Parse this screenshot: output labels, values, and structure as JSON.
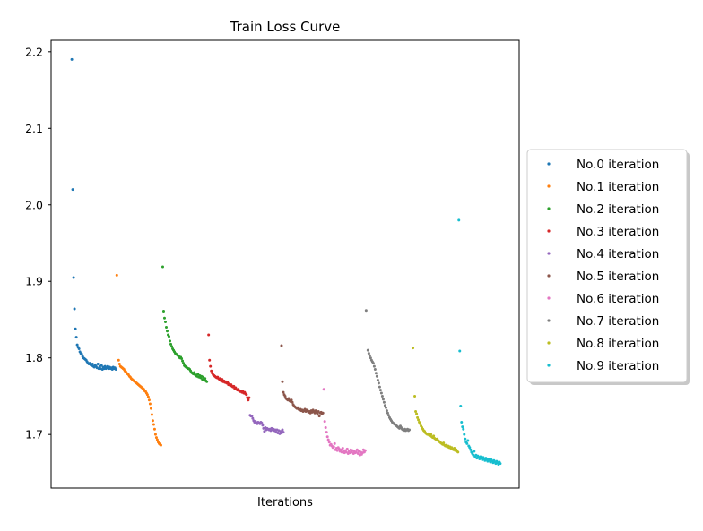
{
  "chart_data": {
    "type": "scatter",
    "title": "Train Loss Curve",
    "xlabel": "Iterations",
    "ylabel": "",
    "xlim": [
      0,
      520
    ],
    "ylim": [
      1.63,
      2.215
    ],
    "yticks": [
      1.7,
      1.8,
      1.9,
      2.0,
      2.1,
      2.2
    ],
    "ytick_labels": [
      "1.7",
      "1.8",
      "1.9",
      "2.0",
      "2.1",
      "2.2"
    ],
    "xticks_visible": false,
    "grid": false,
    "legend_position": "center-right, outside plot",
    "series": [
      {
        "name": "No.0 iteration",
        "color": "#1f77b4",
        "x": [
          23,
          24,
          25,
          26,
          27,
          28,
          29,
          30,
          31,
          32,
          33,
          34,
          35,
          36,
          37,
          38,
          39,
          40,
          41,
          42,
          43,
          44,
          45,
          46,
          47,
          48,
          49,
          50,
          51,
          52,
          53,
          54,
          55,
          56,
          57,
          58,
          59,
          60,
          61,
          62,
          63,
          64,
          65,
          66,
          67,
          68,
          69,
          70,
          71,
          72
        ],
        "y": [
          2.19,
          2.02,
          1.905,
          1.864,
          1.838,
          1.827,
          1.817,
          1.814,
          1.812,
          1.808,
          1.806,
          1.805,
          1.802,
          1.8,
          1.799,
          1.798,
          1.797,
          1.795,
          1.793,
          1.792,
          1.793,
          1.791,
          1.79,
          1.792,
          1.789,
          1.788,
          1.791,
          1.789,
          1.787,
          1.792,
          1.786,
          1.789,
          1.786,
          1.79,
          1.785,
          1.788,
          1.786,
          1.789,
          1.786,
          1.787,
          1.789,
          1.786,
          1.788,
          1.786,
          1.787,
          1.785,
          1.788,
          1.786,
          1.787,
          1.785
        ]
      },
      {
        "name": "No.1 iteration",
        "color": "#ff7f0e",
        "x": [
          73,
          75,
          76,
          77,
          78,
          79,
          80,
          81,
          82,
          83,
          84,
          85,
          86,
          87,
          88,
          89,
          90,
          91,
          92,
          93,
          94,
          95,
          96,
          97,
          98,
          99,
          100,
          101,
          102,
          103,
          104,
          105,
          106,
          107,
          108,
          109,
          110,
          111,
          112,
          113,
          114,
          115,
          116,
          117,
          118,
          119,
          120,
          121,
          122
        ],
        "y": [
          1.908,
          1.797,
          1.792,
          1.789,
          1.788,
          1.787,
          1.786,
          1.785,
          1.783,
          1.782,
          1.78,
          1.779,
          1.778,
          1.776,
          1.775,
          1.773,
          1.772,
          1.771,
          1.77,
          1.769,
          1.768,
          1.767,
          1.766,
          1.765,
          1.764,
          1.763,
          1.762,
          1.761,
          1.76,
          1.759,
          1.757,
          1.756,
          1.754,
          1.752,
          1.749,
          1.745,
          1.74,
          1.734,
          1.726,
          1.718,
          1.713,
          1.707,
          1.7,
          1.696,
          1.693,
          1.69,
          1.688,
          1.687,
          1.686
        ]
      },
      {
        "name": "No.2 iteration",
        "color": "#2ca02c",
        "x": [
          124,
          125,
          126,
          127,
          128,
          129,
          130,
          131,
          132,
          133,
          134,
          135,
          136,
          137,
          138,
          139,
          140,
          141,
          142,
          143,
          144,
          145,
          146,
          147,
          148,
          149,
          150,
          151,
          152,
          153,
          154,
          155,
          156,
          157,
          158,
          159,
          160,
          161,
          162,
          163,
          164,
          165,
          166,
          167,
          168,
          169,
          170,
          171,
          172,
          173
        ],
        "y": [
          1.919,
          1.861,
          1.852,
          1.847,
          1.84,
          1.835,
          1.83,
          1.828,
          1.822,
          1.818,
          1.815,
          1.812,
          1.81,
          1.808,
          1.806,
          1.805,
          1.804,
          1.803,
          1.802,
          1.8,
          1.801,
          1.799,
          1.796,
          1.793,
          1.79,
          1.789,
          1.788,
          1.787,
          1.786,
          1.786,
          1.785,
          1.783,
          1.781,
          1.78,
          1.779,
          1.781,
          1.778,
          1.777,
          1.776,
          1.779,
          1.775,
          1.777,
          1.774,
          1.776,
          1.772,
          1.775,
          1.771,
          1.773,
          1.77,
          1.769
        ]
      },
      {
        "name": "No.3 iteration",
        "color": "#d62728",
        "x": [
          175,
          176,
          177,
          178,
          179,
          180,
          181,
          182,
          183,
          184,
          185,
          186,
          187,
          188,
          189,
          190,
          191,
          192,
          193,
          194,
          195,
          196,
          197,
          198,
          199,
          200,
          201,
          202,
          203,
          204,
          205,
          206,
          207,
          208,
          209,
          210,
          211,
          212,
          213,
          214,
          215,
          216,
          217,
          218,
          219,
          220
        ],
        "y": [
          1.83,
          1.797,
          1.789,
          1.783,
          1.78,
          1.778,
          1.777,
          1.776,
          1.775,
          1.774,
          1.775,
          1.773,
          1.772,
          1.773,
          1.77,
          1.772,
          1.769,
          1.77,
          1.768,
          1.769,
          1.767,
          1.768,
          1.765,
          1.766,
          1.764,
          1.765,
          1.763,
          1.762,
          1.763,
          1.76,
          1.761,
          1.759,
          1.758,
          1.759,
          1.757,
          1.756,
          1.757,
          1.755,
          1.756,
          1.754,
          1.755,
          1.753,
          1.752,
          1.748,
          1.745,
          1.748
        ]
      },
      {
        "name": "No.4 iteration",
        "color": "#9467bd",
        "x": [
          221,
          222,
          223,
          224,
          225,
          226,
          227,
          228,
          229,
          230,
          231,
          232,
          233,
          234,
          235,
          236,
          237,
          238,
          239,
          240,
          241,
          242,
          243,
          244,
          245,
          246,
          247,
          248,
          249,
          250,
          251,
          252,
          253,
          254,
          255,
          256,
          257,
          258
        ],
        "y": [
          1.725,
          1.724,
          1.724,
          1.721,
          1.718,
          1.716,
          1.717,
          1.715,
          1.714,
          1.716,
          1.715,
          1.714,
          1.716,
          1.715,
          1.712,
          1.708,
          1.704,
          1.709,
          1.706,
          1.708,
          1.707,
          1.706,
          1.707,
          1.705,
          1.708,
          1.706,
          1.707,
          1.705,
          1.706,
          1.703,
          1.706,
          1.702,
          1.705,
          1.701,
          1.704,
          1.702,
          1.706,
          1.703
        ]
      },
      {
        "name": "No.5 iteration",
        "color": "#8c564b",
        "x": [
          256,
          257,
          258,
          259,
          260,
          261,
          262,
          263,
          264,
          265,
          266,
          267,
          268,
          269,
          270,
          271,
          272,
          273,
          274,
          275,
          276,
          277,
          278,
          279,
          280,
          281,
          282,
          283,
          284,
          285,
          286,
          287,
          288,
          289,
          290,
          291,
          292,
          293,
          294,
          295,
          296,
          297,
          298,
          299,
          300,
          301,
          302
        ],
        "y": [
          1.816,
          1.769,
          1.755,
          1.752,
          1.75,
          1.747,
          1.746,
          1.745,
          1.747,
          1.744,
          1.743,
          1.745,
          1.742,
          1.739,
          1.737,
          1.736,
          1.735,
          1.734,
          1.735,
          1.733,
          1.732,
          1.733,
          1.731,
          1.732,
          1.73,
          1.731,
          1.733,
          1.73,
          1.732,
          1.731,
          1.729,
          1.73,
          1.728,
          1.731,
          1.729,
          1.732,
          1.73,
          1.728,
          1.731,
          1.729,
          1.727,
          1.73,
          1.724,
          1.728,
          1.729,
          1.727,
          1.728
        ]
      },
      {
        "name": "No.6 iteration",
        "color": "#e377c2",
        "x": [
          303,
          304,
          305,
          306,
          307,
          308,
          309,
          310,
          311,
          312,
          313,
          314,
          315,
          316,
          317,
          318,
          319,
          320,
          321,
          322,
          323,
          324,
          325,
          326,
          327,
          328,
          329,
          330,
          331,
          332,
          333,
          334,
          335,
          336,
          337,
          338,
          339,
          340,
          341,
          342,
          343,
          344,
          345,
          346,
          347,
          348,
          349
        ],
        "y": [
          1.759,
          1.717,
          1.709,
          1.703,
          1.697,
          1.693,
          1.69,
          1.686,
          1.687,
          1.685,
          1.683,
          1.684,
          1.688,
          1.68,
          1.682,
          1.679,
          1.683,
          1.681,
          1.678,
          1.68,
          1.677,
          1.682,
          1.678,
          1.676,
          1.679,
          1.677,
          1.681,
          1.675,
          1.678,
          1.676,
          1.68,
          1.677,
          1.679,
          1.675,
          1.678,
          1.676,
          1.677,
          1.68,
          1.675,
          1.678,
          1.673,
          1.677,
          1.674,
          1.676,
          1.68,
          1.677,
          1.679
        ]
      },
      {
        "name": "No.7 iteration",
        "color": "#7f7f7f",
        "x": [
          350,
          352,
          353,
          354,
          355,
          356,
          357,
          358,
          359,
          360,
          361,
          362,
          363,
          364,
          365,
          366,
          367,
          368,
          369,
          370,
          371,
          372,
          373,
          374,
          375,
          376,
          377,
          378,
          379,
          380,
          381,
          382,
          383,
          384,
          385,
          386,
          387,
          388,
          389,
          390,
          391,
          392,
          393,
          394,
          395,
          396,
          397,
          398
        ],
        "y": [
          1.862,
          1.81,
          1.806,
          1.803,
          1.8,
          1.797,
          1.795,
          1.793,
          1.789,
          1.785,
          1.78,
          1.776,
          1.771,
          1.767,
          1.762,
          1.758,
          1.754,
          1.75,
          1.746,
          1.742,
          1.738,
          1.735,
          1.731,
          1.728,
          1.725,
          1.722,
          1.72,
          1.718,
          1.716,
          1.715,
          1.714,
          1.713,
          1.712,
          1.711,
          1.71,
          1.709,
          1.708,
          1.711,
          1.709,
          1.707,
          1.706,
          1.705,
          1.707,
          1.705,
          1.706,
          1.707,
          1.705,
          1.706
        ]
      },
      {
        "name": "No.8 iteration",
        "color": "#bcbd22",
        "x": [
          402,
          404,
          405,
          406,
          407,
          408,
          409,
          410,
          411,
          412,
          413,
          414,
          415,
          416,
          417,
          418,
          419,
          420,
          421,
          422,
          423,
          424,
          425,
          426,
          427,
          428,
          429,
          430,
          431,
          432,
          433,
          434,
          435,
          436,
          437,
          438,
          439,
          440,
          441,
          442,
          443,
          444,
          445,
          446,
          447,
          448,
          449,
          450,
          451,
          452
        ],
        "y": [
          1.813,
          1.75,
          1.73,
          1.727,
          1.722,
          1.719,
          1.716,
          1.714,
          1.711,
          1.709,
          1.707,
          1.705,
          1.704,
          1.702,
          1.701,
          1.7,
          1.701,
          1.699,
          1.698,
          1.7,
          1.697,
          1.696,
          1.698,
          1.695,
          1.694,
          1.693,
          1.694,
          1.692,
          1.691,
          1.69,
          1.689,
          1.688,
          1.687,
          1.689,
          1.686,
          1.685,
          1.686,
          1.684,
          1.685,
          1.683,
          1.684,
          1.682,
          1.683,
          1.681,
          1.68,
          1.682,
          1.679,
          1.68,
          1.678,
          1.677
        ]
      },
      {
        "name": "No.9 iteration",
        "color": "#17becf",
        "x": [
          453,
          454,
          455,
          456,
          457,
          458,
          459,
          460,
          461,
          462,
          463,
          464,
          465,
          466,
          467,
          468,
          469,
          470,
          471,
          472,
          473,
          474,
          475,
          476,
          477,
          478,
          479,
          480,
          481,
          482,
          483,
          484,
          485,
          486,
          487,
          488,
          489,
          490,
          491,
          492,
          493,
          494,
          495,
          496,
          497,
          498,
          499
        ],
        "y": [
          1.98,
          1.809,
          1.737,
          1.716,
          1.71,
          1.707,
          1.7,
          1.694,
          1.69,
          1.688,
          1.692,
          1.685,
          1.683,
          1.68,
          1.677,
          1.675,
          1.673,
          1.678,
          1.671,
          1.673,
          1.669,
          1.672,
          1.67,
          1.668,
          1.671,
          1.669,
          1.667,
          1.67,
          1.668,
          1.666,
          1.669,
          1.667,
          1.665,
          1.668,
          1.666,
          1.664,
          1.667,
          1.665,
          1.663,
          1.666,
          1.664,
          1.662,
          1.665,
          1.663,
          1.661,
          1.664,
          1.662
        ]
      }
    ]
  }
}
